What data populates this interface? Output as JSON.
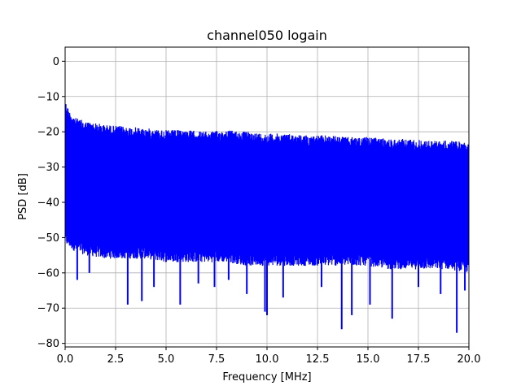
{
  "chart_data": {
    "type": "line",
    "title": "channel050 logain",
    "xlabel": "Frequency [MHz]",
    "ylabel": "PSD [dB]",
    "xlim": [
      0,
      20
    ],
    "ylim": [
      -81,
      4
    ],
    "xticks": [
      0,
      2.5,
      5,
      7.5,
      10,
      12.5,
      15,
      17.5,
      20
    ],
    "xtick_labels": [
      "0.0",
      "2.5",
      "5.0",
      "7.5",
      "10.0",
      "12.5",
      "15.0",
      "17.5",
      "20.0"
    ],
    "yticks": [
      0,
      -10,
      -20,
      -30,
      -40,
      -50,
      -60,
      -70,
      -80
    ],
    "ytick_labels": [
      "0",
      "−10",
      "−20",
      "−30",
      "−40",
      "−50",
      "−60",
      "−70",
      "−80"
    ],
    "grid": true,
    "legend": "none",
    "series": [
      {
        "color": "#0000ff",
        "envelope_upper": {
          "x": [
            0,
            0.2,
            0.5,
            1,
            2,
            3,
            4,
            5,
            6,
            7,
            8,
            9,
            10,
            11,
            12,
            13,
            14,
            15,
            16,
            17,
            18,
            19,
            20
          ],
          "y": [
            -11,
            -14,
            -16,
            -17,
            -18,
            -18.5,
            -19,
            -19.5,
            -19.5,
            -20,
            -19.5,
            -20,
            -20.5,
            -20.5,
            -21,
            -21,
            -21.5,
            -21.5,
            -22,
            -22,
            -22.5,
            -22.5,
            -23
          ]
        },
        "body_band": {
          "upper": -23,
          "lower": -47
        },
        "envelope_lower": {
          "x": [
            0,
            0.5,
            1,
            2,
            3,
            4,
            5,
            6,
            7,
            8,
            9,
            10,
            11,
            12,
            13,
            14,
            15,
            16,
            17,
            18,
            19,
            20
          ],
          "y": [
            -52,
            -54,
            -55,
            -56,
            -56,
            -56,
            -57,
            -57,
            -57,
            -57,
            -58,
            -58,
            -58,
            -58,
            -58,
            -58,
            -58,
            -59,
            -59,
            -59,
            -59,
            -60
          ]
        },
        "notable_dips": [
          {
            "x": 0.6,
            "y": -62
          },
          {
            "x": 1.2,
            "y": -60
          },
          {
            "x": 3.1,
            "y": -69
          },
          {
            "x": 3.8,
            "y": -68
          },
          {
            "x": 4.4,
            "y": -64
          },
          {
            "x": 5.7,
            "y": -69
          },
          {
            "x": 6.6,
            "y": -63
          },
          {
            "x": 7.4,
            "y": -64
          },
          {
            "x": 8.1,
            "y": -62
          },
          {
            "x": 9.0,
            "y": -66
          },
          {
            "x": 9.9,
            "y": -71
          },
          {
            "x": 10.0,
            "y": -72
          },
          {
            "x": 10.8,
            "y": -67
          },
          {
            "x": 12.7,
            "y": -64
          },
          {
            "x": 13.7,
            "y": -76
          },
          {
            "x": 14.2,
            "y": -72
          },
          {
            "x": 15.1,
            "y": -69
          },
          {
            "x": 16.2,
            "y": -73
          },
          {
            "x": 17.5,
            "y": -64
          },
          {
            "x": 18.6,
            "y": -66
          },
          {
            "x": 19.4,
            "y": -77
          },
          {
            "x": 19.8,
            "y": -65
          }
        ]
      }
    ]
  }
}
